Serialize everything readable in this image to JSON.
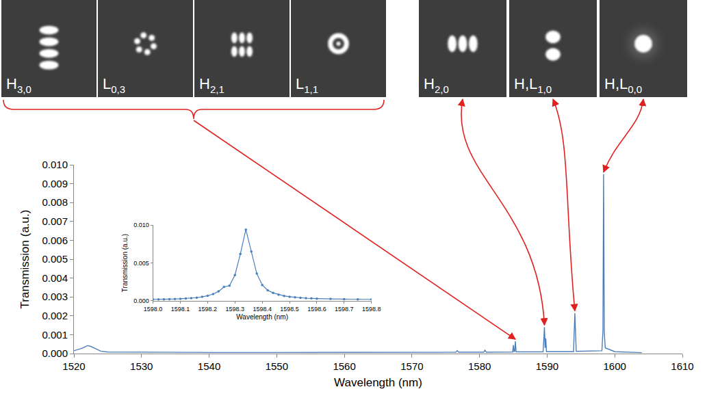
{
  "chart_data": [
    {
      "type": "line",
      "xlabel": "Wavelength (nm)",
      "ylabel": "Transmission (a.u.)",
      "color": "#4a7ebb",
      "x": [
        1520,
        1520.5,
        1521,
        1521.5,
        1522,
        1522.5,
        1523,
        1523.5,
        1524,
        1525,
        1530,
        1540,
        1550,
        1560,
        1570,
        1576.5,
        1576.7,
        1576.9,
        1580.6,
        1580.8,
        1581.0,
        1584.9,
        1585.0,
        1585.1,
        1585.2,
        1585.3,
        1585.4,
        1589.4,
        1589.6,
        1589.7,
        1589.8,
        1589.9,
        1593.9,
        1594.1,
        1594.3,
        1598.1,
        1598.25,
        1598.35,
        1598.45,
        1598.6,
        1600,
        1604
      ],
      "values": [
        0.00015,
        0.0002,
        0.00026,
        0.00033,
        0.00042,
        0.00038,
        0.0003,
        0.0002,
        0.00012,
        8e-05,
        7e-05,
        6e-05,
        6e-05,
        6e-05,
        7e-05,
        7e-05,
        0.00016,
        7e-05,
        7e-05,
        0.00018,
        7e-05,
        8e-05,
        0.00045,
        0.0001,
        0.00012,
        0.00065,
        9e-05,
        9e-05,
        0.0014,
        0.0003,
        0.0008,
        0.0001,
        0.0001,
        0.00215,
        0.00012,
        0.00015,
        0.0012,
        0.0095,
        0.0011,
        0.0003,
        0.0001,
        5e-05
      ],
      "xlim": [
        1520,
        1610
      ],
      "ylim": [
        0,
        0.01
      ],
      "xticks": [
        1520,
        1530,
        1540,
        1550,
        1560,
        1570,
        1580,
        1590,
        1600,
        1610
      ],
      "yticks": [
        {
          "value": 0,
          "label": "0.000"
        },
        {
          "value": 0.001,
          "label": "0.001"
        },
        {
          "value": 0.002,
          "label": "0.002"
        },
        {
          "value": 0.003,
          "label": "0.003"
        },
        {
          "value": 0.004,
          "label": "0.004"
        },
        {
          "value": 0.005,
          "label": "0.005"
        },
        {
          "value": 0.006,
          "label": "0.006"
        },
        {
          "value": 0.007,
          "label": "0.007"
        },
        {
          "value": 0.008,
          "label": "0.008"
        },
        {
          "value": 0.009,
          "label": "0.009"
        },
        {
          "value": 0.01,
          "label": "0.010"
        }
      ],
      "grid": false
    },
    {
      "type": "line",
      "marker": "circle",
      "xlabel": "Wavelength (nm)",
      "ylabel": "Transmission (a.u.)",
      "color": "#4a7ebb",
      "x": [
        1598.0,
        1598.02,
        1598.04,
        1598.06,
        1598.08,
        1598.1,
        1598.12,
        1598.14,
        1598.16,
        1598.18,
        1598.2,
        1598.22,
        1598.24,
        1598.26,
        1598.28,
        1598.3,
        1598.32,
        1598.34,
        1598.36,
        1598.38,
        1598.4,
        1598.42,
        1598.44,
        1598.46,
        1598.48,
        1598.5,
        1598.52,
        1598.54,
        1598.56,
        1598.58,
        1598.6,
        1598.65,
        1598.7,
        1598.75,
        1598.8
      ],
      "values": [
        0.0002,
        0.0002,
        0.00021,
        0.00023,
        0.00025,
        0.00028,
        0.00031,
        0.00036,
        0.00043,
        0.00053,
        0.00068,
        0.0009,
        0.00125,
        0.00185,
        0.002,
        0.0034,
        0.0062,
        0.0094,
        0.0065,
        0.0036,
        0.0021,
        0.0014,
        0.00105,
        0.00082,
        0.00066,
        0.00055,
        0.00047,
        0.00041,
        0.00036,
        0.00033,
        0.0003,
        0.00026,
        0.00023,
        0.00021,
        0.0002
      ],
      "xlim": [
        1598.0,
        1598.8
      ],
      "ylim": [
        0,
        0.01
      ],
      "xticks": [
        {
          "value": 1598.0,
          "label": "1598.0"
        },
        1598.1,
        1598.2,
        1598.3,
        1598.4,
        1598.5,
        1598.6,
        1598.7,
        1598.8
      ],
      "yticks": [
        {
          "value": 0,
          "label": "0.000"
        },
        {
          "value": 0.005,
          "label": "0.005"
        },
        {
          "value": 0.01,
          "label": "0.010"
        }
      ],
      "grid": false
    }
  ],
  "mode_images": [
    {
      "modes": [
        {
          "label": "H",
          "subscript": "3,0"
        },
        {
          "label": "L",
          "subscript": "0,3"
        },
        {
          "label": "H",
          "subscript": "2,1"
        },
        {
          "label": "L",
          "subscript": "1,1"
        }
      ],
      "points_to": {
        "wavelength": 1585.3,
        "transmission": 0.00065
      }
    },
    {
      "modes": [
        {
          "label": "H",
          "subscript": "2,0"
        }
      ],
      "points_to": {
        "wavelength": 1589.6,
        "transmission": 0.0014
      }
    },
    {
      "modes": [
        {
          "label": "H,L",
          "subscript": "1,0"
        }
      ],
      "points_to": {
        "wavelength": 1594.1,
        "transmission": 0.00215
      }
    },
    {
      "modes": [
        {
          "label": "H,L",
          "subscript": "0,0"
        }
      ],
      "points_to": {
        "wavelength": 1598.35,
        "transmission": 0.0095
      }
    }
  ]
}
